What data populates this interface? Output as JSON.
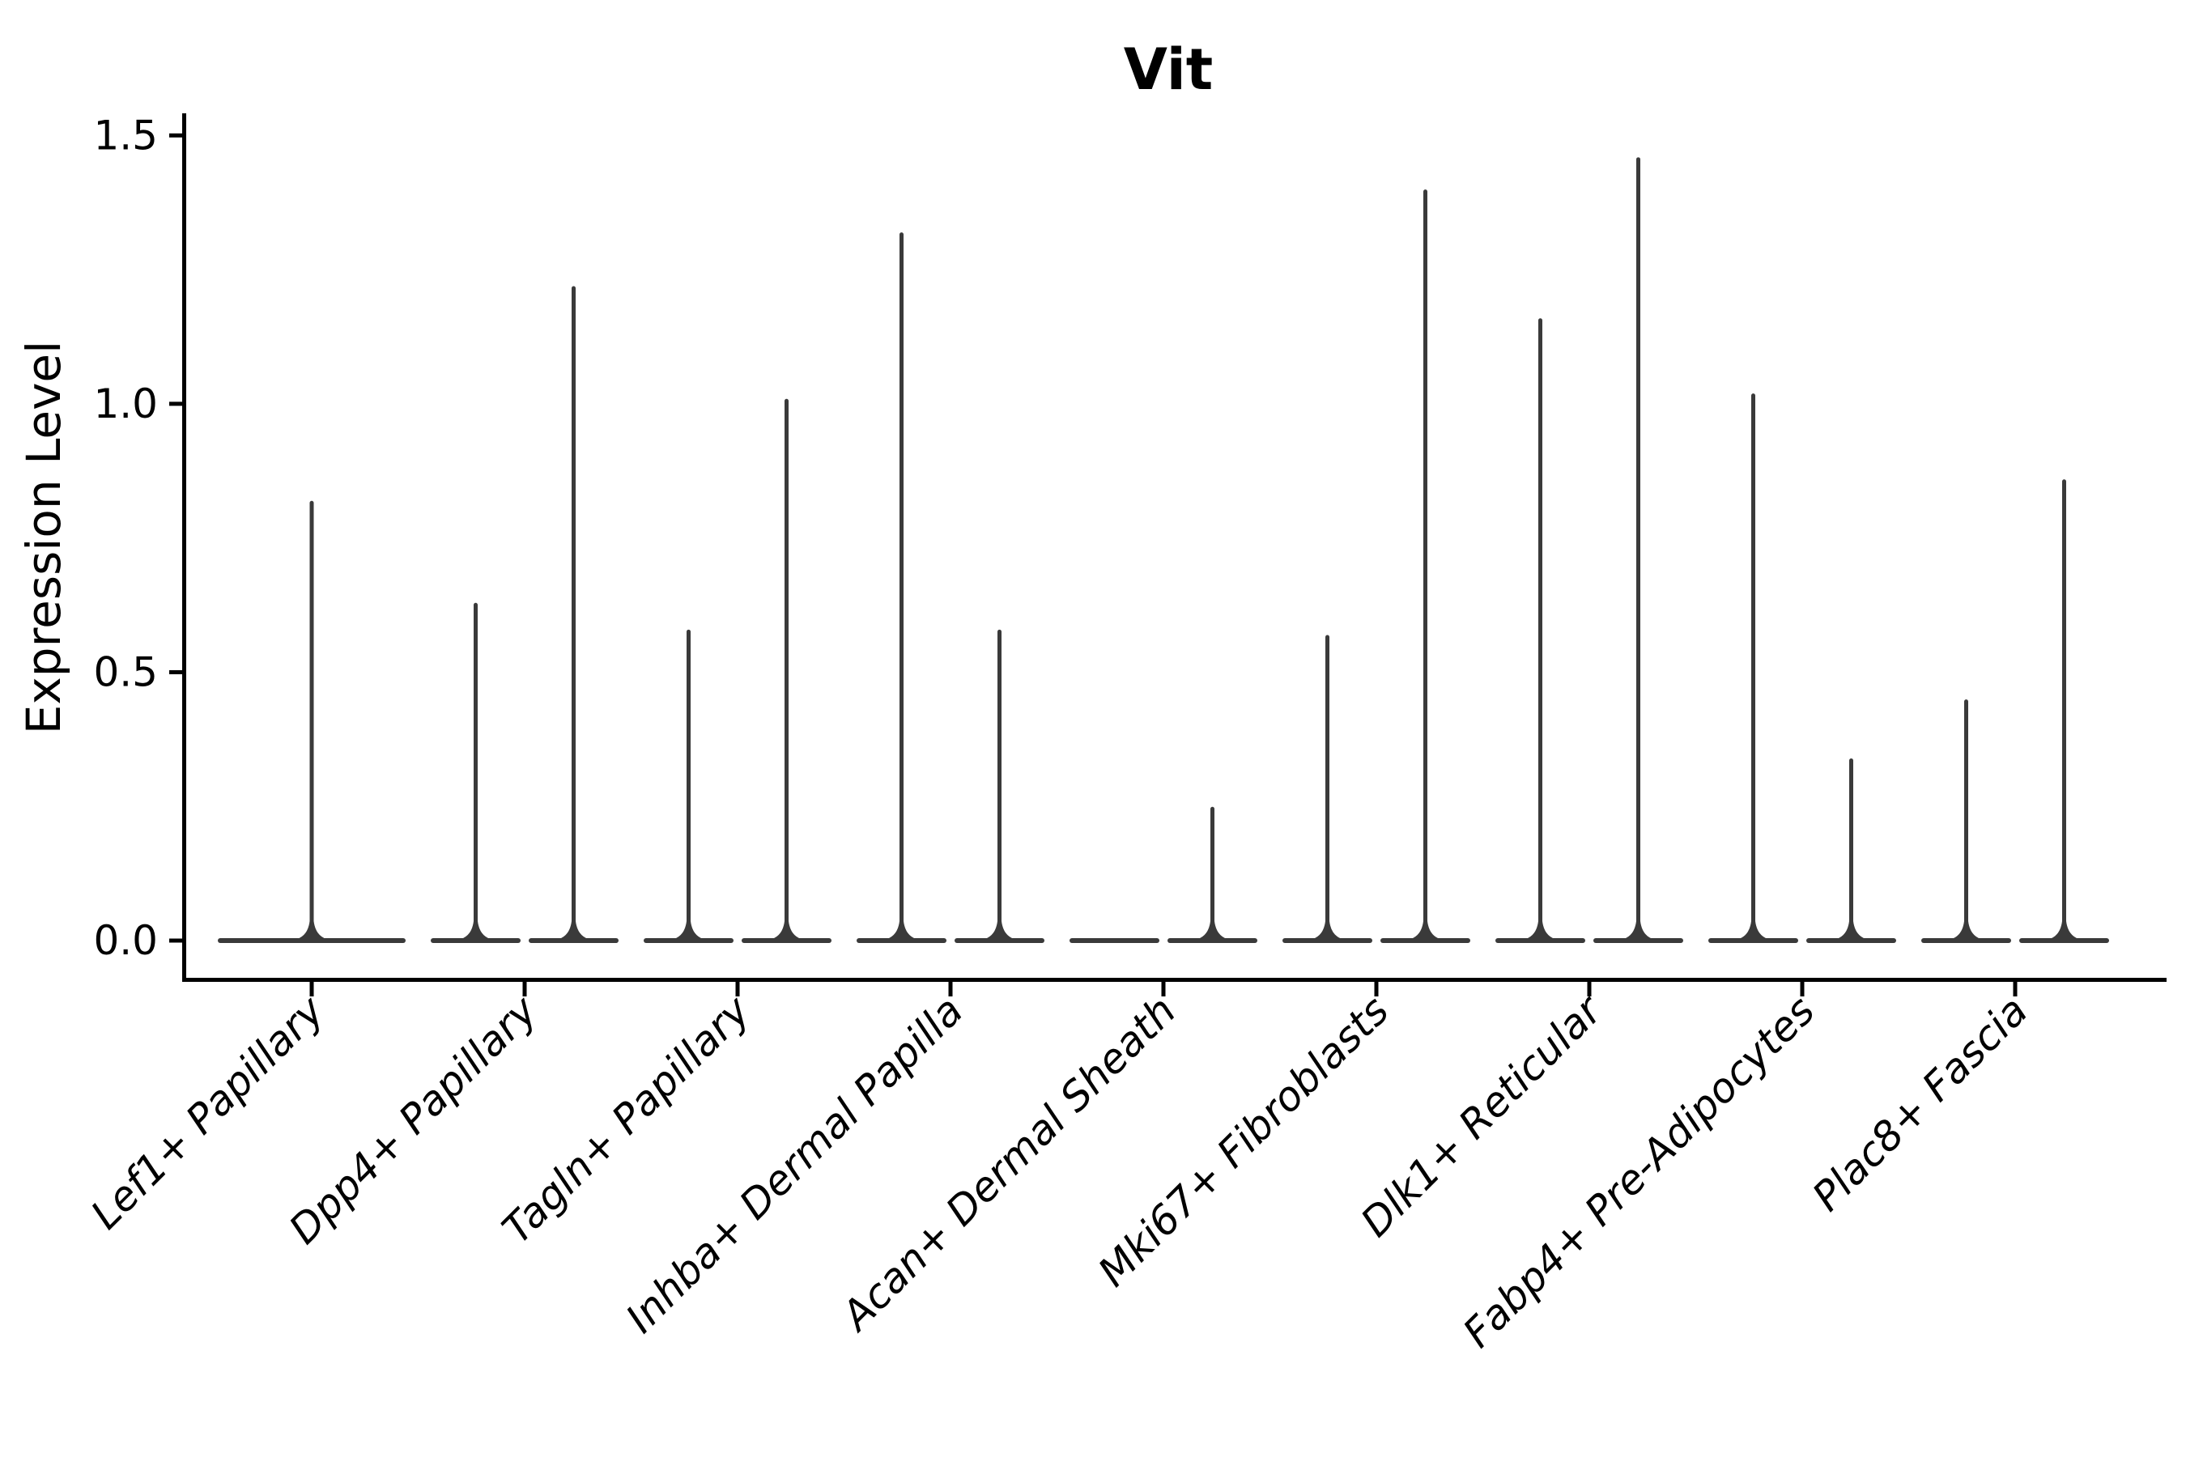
{
  "chart_data": {
    "type": "violin",
    "title": "Vit",
    "ylabel": "Expression Level",
    "xlabel": "",
    "ylim": [
      0,
      1.5
    ],
    "yticks": [
      {
        "value": 0.0,
        "label": "0.0"
      },
      {
        "value": 0.5,
        "label": "0.5"
      },
      {
        "value": 1.0,
        "label": "1.0"
      },
      {
        "value": 1.5,
        "label": "1.5"
      }
    ],
    "grid": "off",
    "legend": "none",
    "violin_color": "#3a3a3a",
    "axis_color": "#000000",
    "categories": [
      "Lef1+ Papillary",
      "Dpp4+ Papillary",
      "Tagln+ Papillary",
      "Inhba+ Dermal Papilla",
      "Acan+ Dermal Sheath",
      "Mki67+ Fibroblasts",
      "Dlk1+ Reticular",
      "Fabp4+ Pre-Adipocytes",
      "Plac8+ Fascia"
    ],
    "groups": [
      {
        "label": "Lef1+ Papillary",
        "violins": [
          {
            "slot": "full",
            "max_expression": 0.82
          }
        ]
      },
      {
        "label": "Dpp4+ Papillary",
        "violins": [
          {
            "slot": "left",
            "max_expression": 0.63
          },
          {
            "slot": "right",
            "max_expression": 1.22
          }
        ]
      },
      {
        "label": "Tagln+ Papillary",
        "violins": [
          {
            "slot": "left",
            "max_expression": 0.58
          },
          {
            "slot": "right",
            "max_expression": 1.01
          }
        ]
      },
      {
        "label": "Inhba+ Dermal Papilla",
        "violins": [
          {
            "slot": "left",
            "max_expression": 1.32
          },
          {
            "slot": "right",
            "max_expression": 0.58
          }
        ]
      },
      {
        "label": "Acan+ Dermal Sheath",
        "violins": [
          {
            "slot": "left",
            "max_expression": 0.0
          },
          {
            "slot": "right",
            "max_expression": 0.25
          }
        ]
      },
      {
        "label": "Mki67+ Fibroblasts",
        "violins": [
          {
            "slot": "left",
            "max_expression": 0.57
          },
          {
            "slot": "right",
            "max_expression": 1.4
          }
        ]
      },
      {
        "label": "Dlk1+ Reticular",
        "violins": [
          {
            "slot": "left",
            "max_expression": 1.16
          },
          {
            "slot": "right",
            "max_expression": 1.46
          }
        ]
      },
      {
        "label": "Fabp4+ Pre-Adipocytes",
        "violins": [
          {
            "slot": "left",
            "max_expression": 1.02
          },
          {
            "slot": "right",
            "max_expression": 0.34
          }
        ]
      },
      {
        "label": "Plac8+ Fascia",
        "violins": [
          {
            "slot": "left",
            "max_expression": 0.45
          },
          {
            "slot": "right",
            "max_expression": 0.86
          }
        ]
      }
    ]
  }
}
